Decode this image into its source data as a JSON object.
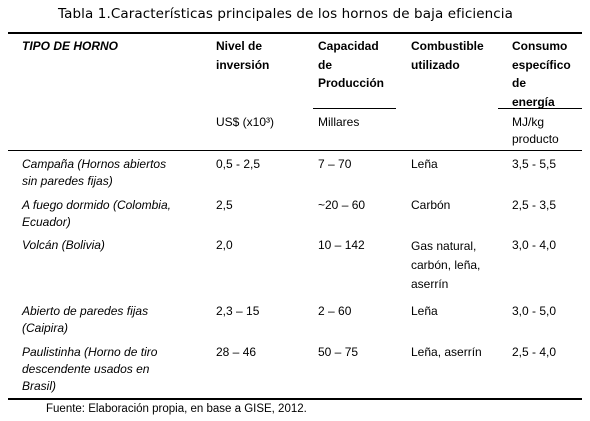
{
  "caption": "Tabla 1.Características principales de los hornos de baja eficiencia",
  "headers": {
    "tipo": "TIPO DE HORNO",
    "nivel": [
      "Nivel de",
      "inversión"
    ],
    "capacidad": [
      "Capacidad",
      "de",
      "Producción"
    ],
    "combustible": [
      "Combustible",
      "utilizado"
    ],
    "consumo": [
      "Consumo",
      "específico",
      "de",
      "energía"
    ]
  },
  "units": {
    "nivel": "US$ (x10³)",
    "capacidad": "Millares",
    "consumo": [
      "MJ/kg",
      "producto"
    ]
  },
  "rows": [
    {
      "tipo": [
        "Campaña (Hornos abiertos",
        "sin paredes fijas)"
      ],
      "nivel": "0,5 - 2,5",
      "capacidad": "7 – 70",
      "combustible": [
        "Leña"
      ],
      "consumo": "3,5 - 5,5"
    },
    {
      "tipo": [
        "A fuego dormido (Colombia,",
        "Ecuador)"
      ],
      "nivel": "2,5",
      "capacidad": "~20 – 60",
      "combustible": [
        "Carbón"
      ],
      "consumo": "2,5 - 3,5"
    },
    {
      "tipo": [
        "Volcán (Bolivia)"
      ],
      "nivel": "2,0",
      "capacidad": "10 – 142",
      "combustible": [
        "Gas natural,",
        "carbón, leña,",
        "aserrín"
      ],
      "consumo": "3,0 - 4,0"
    },
    {
      "tipo": [
        "Abierto de paredes fijas",
        "(Caipira)"
      ],
      "nivel": "2,3 – 15",
      "capacidad": "2 – 60",
      "combustible": [
        "Leña"
      ],
      "consumo": "3,0 - 5,0"
    },
    {
      "tipo": [
        "Paulistinha (Horno de tiro",
        "descendente usados en",
        "Brasil)"
      ],
      "nivel": "28 – 46",
      "capacidad": "50 – 75",
      "combustible": [
        "Leña, aserrín"
      ],
      "consumo": "2,5 - 4,0"
    }
  ],
  "footer": "Fuente: Elaboración propia, en base a GISE, 2012."
}
